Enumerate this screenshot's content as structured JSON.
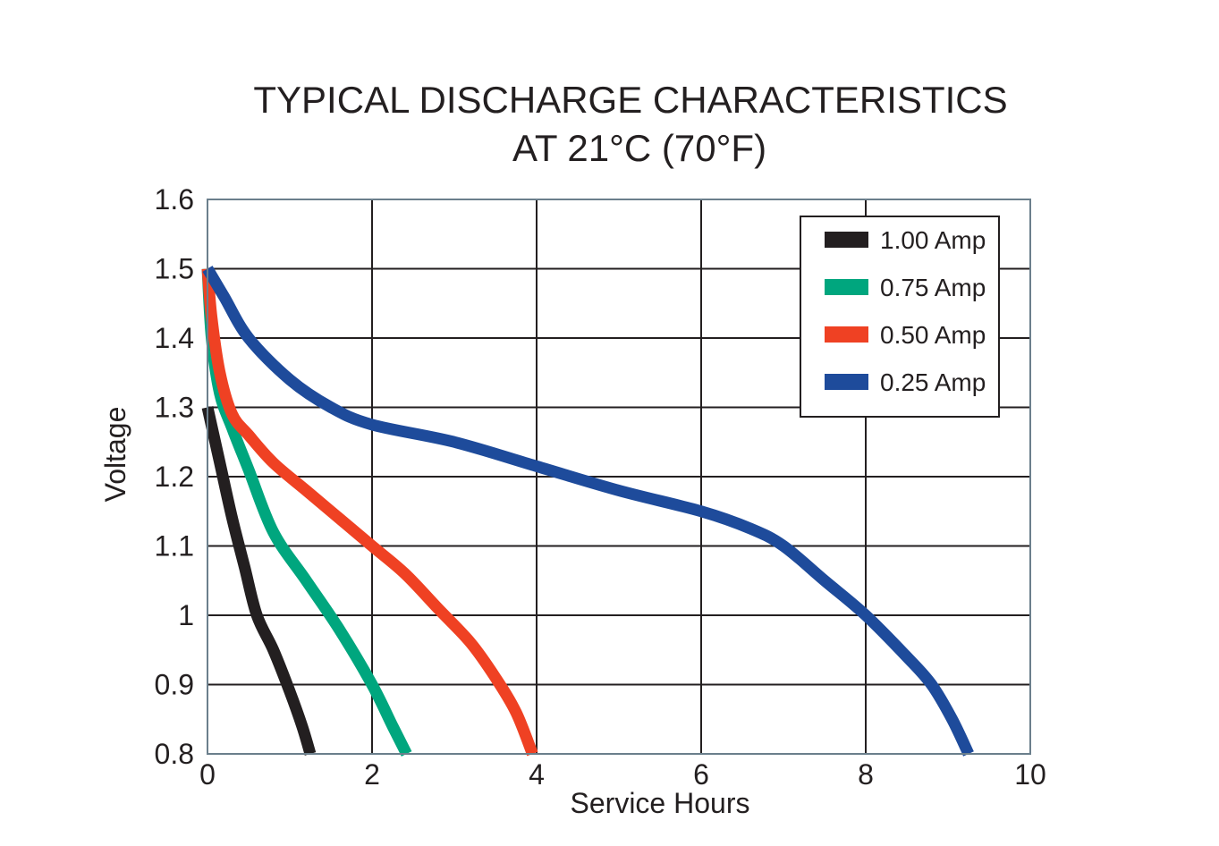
{
  "chart_data": {
    "type": "line",
    "title_line1": "TYPICAL DISCHARGE CHARACTERISTICS",
    "title_line2": "AT 21°C (70°F)",
    "xlabel": "Service Hours",
    "ylabel": "Voltage",
    "xlim": [
      0,
      10
    ],
    "ylim": [
      0.8,
      1.6
    ],
    "x_ticks": [
      0,
      2,
      4,
      6,
      8,
      10
    ],
    "x_tick_labels": [
      "0",
      "2",
      "4",
      "6",
      "8",
      "10"
    ],
    "y_ticks": [
      0.8,
      0.9,
      1.0,
      1.1,
      1.2,
      1.3,
      1.4,
      1.5,
      1.6
    ],
    "y_tick_labels": [
      "0.8",
      "0.9",
      "1",
      "1.1",
      "1.2",
      "1.3",
      "1.4",
      "1.5",
      "1.6"
    ],
    "grid": true,
    "legend_position": "top-right",
    "series": [
      {
        "name": "1.00 Amp",
        "color": "#231f20",
        "x": [
          0,
          0.15,
          0.3,
          0.45,
          0.6,
          0.8,
          1.0,
          1.15,
          1.25
        ],
        "y": [
          1.3,
          1.22,
          1.14,
          1.07,
          1.0,
          0.95,
          0.89,
          0.84,
          0.8
        ]
      },
      {
        "name": "0.75 Amp",
        "color": "#00a67e",
        "x": [
          0,
          0.05,
          0.15,
          0.3,
          0.5,
          0.8,
          1.2,
          1.6,
          2.0,
          2.25,
          2.42
        ],
        "y": [
          1.5,
          1.4,
          1.32,
          1.27,
          1.21,
          1.12,
          1.05,
          0.98,
          0.9,
          0.84,
          0.8
        ]
      },
      {
        "name": "0.50 Amp",
        "color": "#ef4123",
        "x": [
          0,
          0.05,
          0.15,
          0.3,
          0.5,
          0.8,
          1.2,
          1.6,
          2.0,
          2.4,
          2.8,
          3.2,
          3.5,
          3.75,
          3.95
        ],
        "y": [
          1.5,
          1.43,
          1.35,
          1.29,
          1.26,
          1.22,
          1.18,
          1.14,
          1.1,
          1.06,
          1.01,
          0.96,
          0.91,
          0.86,
          0.8
        ]
      },
      {
        "name": "0.25 Amp",
        "color": "#1e4b9b",
        "x": [
          0,
          0.2,
          0.5,
          1.0,
          1.5,
          2.0,
          3.0,
          4.0,
          5.0,
          6.0,
          6.6,
          7.0,
          7.5,
          8.0,
          8.5,
          8.8,
          9.05,
          9.25
        ],
        "y": [
          1.5,
          1.46,
          1.4,
          1.34,
          1.3,
          1.275,
          1.25,
          1.215,
          1.18,
          1.15,
          1.125,
          1.1,
          1.05,
          1.0,
          0.94,
          0.9,
          0.85,
          0.8
        ]
      }
    ]
  }
}
